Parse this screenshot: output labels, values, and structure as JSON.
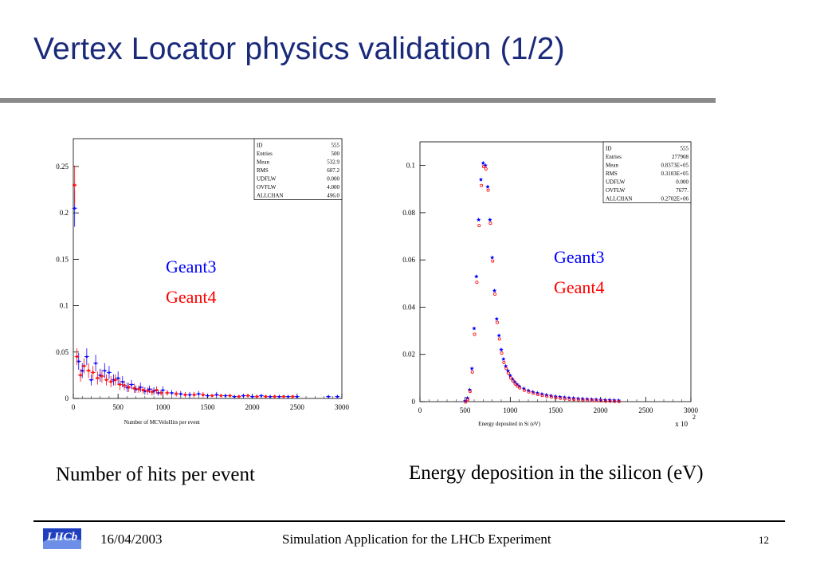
{
  "slide": {
    "title": "Vertex Locator physics validation (1/2)",
    "captions": {
      "left": "Number of hits per event",
      "right": "Energy deposition in the silicon (eV)"
    },
    "footer": {
      "logo_text": "LHCb",
      "date": "16/04/2003",
      "center": "Simulation Application for the LHCb Experiment",
      "page": "12"
    },
    "colors": {
      "title": "#1a2a7a",
      "geant3": "#0000ff",
      "geant4": "#ff0000",
      "rule": "#8a8a8a"
    }
  },
  "chart_data": [
    {
      "type": "scatter",
      "xlabel": "Number of MCVeloHits per event",
      "ylabel": "",
      "xlim": [
        0,
        3000
      ],
      "ylim": [
        0,
        0.28
      ],
      "xticks": [
        "0",
        "500",
        "1000",
        "1500",
        "2000",
        "2500",
        "3000"
      ],
      "yticks": [
        "0",
        "0.05",
        "0.1",
        "0.15",
        "0.2",
        "0.25"
      ],
      "stats_box": [
        [
          "ID",
          "555"
        ],
        [
          "Entries",
          "500"
        ],
        [
          "Mean",
          "532.9"
        ],
        [
          "RMS",
          "607.2"
        ],
        [
          "UDFLW",
          "0.000"
        ],
        [
          "OVFLW",
          "4.000"
        ],
        [
          "ALLCHAN",
          "496.0"
        ]
      ],
      "legend": [
        "Geant3",
        "Geant4"
      ],
      "series": [
        {
          "name": "Geant3",
          "x": [
            15,
            60,
            100,
            150,
            200,
            250,
            300,
            350,
            400,
            450,
            500,
            550,
            600,
            650,
            700,
            750,
            800,
            850,
            900,
            950,
            1000,
            1100,
            1200,
            1300,
            1400,
            1500,
            1600,
            1700,
            1800,
            1900,
            2000,
            2100,
            2200,
            2300,
            2400,
            2500,
            2850,
            2950
          ],
          "y": [
            0.205,
            0.04,
            0.03,
            0.045,
            0.02,
            0.038,
            0.025,
            0.03,
            0.028,
            0.02,
            0.022,
            0.018,
            0.012,
            0.015,
            0.01,
            0.012,
            0.008,
            0.01,
            0.008,
            0.006,
            0.009,
            0.006,
            0.005,
            0.004,
            0.005,
            0.003,
            0.004,
            0.003,
            0.002,
            0.003,
            0.002,
            0.003,
            0.002,
            0.002,
            0.002,
            0.002,
            0.002,
            0.002
          ],
          "err": [
            0.02,
            0.009,
            0.008,
            0.009,
            0.006,
            0.009,
            0.007,
            0.008,
            0.007,
            0.006,
            0.007,
            0.006,
            0.005,
            0.005,
            0.004,
            0.005,
            0.004,
            0.004,
            0.004,
            0.003,
            0.004,
            0.003,
            0.003,
            0.003,
            0.003,
            0.002,
            0.003,
            0.002,
            0.002,
            0.002,
            0.002,
            0.002,
            0.002,
            0.002,
            0.002,
            0.002,
            0.002,
            0.002
          ]
        },
        {
          "name": "Geant4",
          "x": [
            15,
            40,
            80,
            120,
            170,
            220,
            270,
            320,
            370,
            420,
            470,
            520,
            570,
            620,
            680,
            730,
            780,
            830,
            880,
            930,
            980,
            1050,
            1150,
            1250,
            1350,
            1450,
            1550,
            1650,
            1750,
            1850,
            1950,
            2050,
            2150,
            2250,
            2350,
            2450
          ],
          "y": [
            0.23,
            0.045,
            0.025,
            0.035,
            0.03,
            0.028,
            0.022,
            0.024,
            0.02,
            0.018,
            0.02,
            0.015,
            0.014,
            0.012,
            0.011,
            0.01,
            0.009,
            0.008,
            0.007,
            0.009,
            0.006,
            0.006,
            0.005,
            0.004,
            0.004,
            0.004,
            0.003,
            0.003,
            0.003,
            0.002,
            0.003,
            0.002,
            0.002,
            0.002,
            0.002,
            0.002
          ],
          "err": [
            0.021,
            0.009,
            0.007,
            0.008,
            0.008,
            0.007,
            0.007,
            0.007,
            0.006,
            0.006,
            0.006,
            0.006,
            0.005,
            0.005,
            0.005,
            0.004,
            0.004,
            0.004,
            0.004,
            0.004,
            0.003,
            0.003,
            0.003,
            0.003,
            0.003,
            0.003,
            0.002,
            0.002,
            0.002,
            0.002,
            0.002,
            0.002,
            0.002,
            0.002,
            0.002,
            0.002
          ]
        }
      ]
    },
    {
      "type": "scatter",
      "xlabel": "Energy deposited in Si (eV)",
      "ylabel": "",
      "x_multiplier": "x 10",
      "x_multiplier_exp": "2",
      "xlim": [
        0,
        3000
      ],
      "ylim": [
        0,
        0.11
      ],
      "xticks": [
        "0",
        "500",
        "1000",
        "1500",
        "2000",
        "2500",
        "3000"
      ],
      "yticks": [
        "0",
        "0.02",
        "0.04",
        "0.06",
        "0.08",
        "0.1"
      ],
      "stats_box": [
        [
          "ID",
          "555"
        ],
        [
          "Entries",
          "277908"
        ],
        [
          "Mean",
          "0.8373E+05"
        ],
        [
          "RMS",
          "0.3103E+05"
        ],
        [
          "UDFLW",
          "0.000"
        ],
        [
          "OVFLW",
          "7677."
        ],
        [
          "ALLCHAN",
          "0.2702E+06"
        ]
      ],
      "legend": [
        "Geant3",
        "Geant4"
      ],
      "series": [
        {
          "name": "Geant3",
          "x": [
            500,
            525,
            550,
            575,
            600,
            625,
            650,
            675,
            700,
            725,
            750,
            775,
            800,
            825,
            850,
            875,
            900,
            925,
            950,
            975,
            1000,
            1025,
            1050,
            1075,
            1100,
            1150,
            1200,
            1250,
            1300,
            1350,
            1400,
            1450,
            1500,
            1550,
            1600,
            1650,
            1700,
            1750,
            1800,
            1850,
            1900,
            1950,
            2000,
            2050,
            2100,
            2150,
            2200
          ],
          "y": [
            0.0003,
            0.0015,
            0.005,
            0.014,
            0.031,
            0.053,
            0.077,
            0.094,
            0.101,
            0.1,
            0.091,
            0.077,
            0.061,
            0.047,
            0.035,
            0.028,
            0.022,
            0.018,
            0.015,
            0.013,
            0.011,
            0.0095,
            0.0083,
            0.0073,
            0.0065,
            0.0055,
            0.0047,
            0.0041,
            0.0036,
            0.0032,
            0.0028,
            0.0025,
            0.0022,
            0.002,
            0.0018,
            0.0016,
            0.0015,
            0.0013,
            0.0012,
            0.0011,
            0.001,
            0.0009,
            0.0008,
            0.0007,
            0.0007,
            0.0006,
            0.0005
          ]
        },
        {
          "name": "Geant4",
          "x": [
            500,
            525,
            550,
            575,
            600,
            625,
            650,
            675,
            700,
            725,
            750,
            775,
            800,
            825,
            850,
            875,
            900,
            925,
            950,
            975,
            1000,
            1025,
            1050,
            1075,
            1100,
            1150,
            1200,
            1250,
            1300,
            1350,
            1400,
            1450,
            1500,
            1550,
            1600,
            1650,
            1700,
            1750,
            1800,
            1850,
            1900,
            1950,
            2000,
            2050,
            2100,
            2150,
            2200
          ],
          "y": [
            0.0003,
            0.0014,
            0.0048,
            0.013,
            0.029,
            0.051,
            0.075,
            0.092,
            0.1,
            0.099,
            0.09,
            0.076,
            0.06,
            0.046,
            0.034,
            0.027,
            0.021,
            0.017,
            0.0145,
            0.0125,
            0.0105,
            0.0092,
            0.008,
            0.007,
            0.0063,
            0.0053,
            0.0046,
            0.004,
            0.0035,
            0.0031,
            0.0027,
            0.0024,
            0.0021,
            0.0019,
            0.0017,
            0.0015,
            0.0014,
            0.0013,
            0.0012,
            0.0011,
            0.001,
            0.0009,
            0.0008,
            0.0007,
            0.0007,
            0.0006,
            0.0005
          ]
        }
      ]
    }
  ]
}
